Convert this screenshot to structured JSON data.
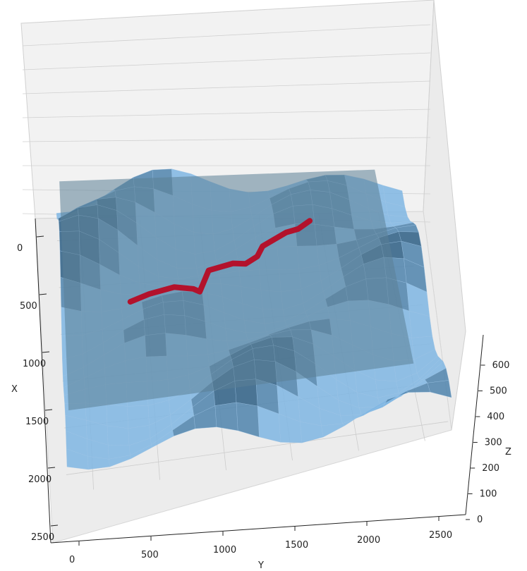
{
  "chart_data": {
    "type": "surface3d",
    "title": "",
    "axes": {
      "x": {
        "label": "X",
        "ticks": [
          "0",
          "500",
          "1000",
          "1500",
          "2000",
          "2500"
        ],
        "range": [
          -200,
          2700
        ]
      },
      "y": {
        "label": "Y",
        "ticks": [
          "0",
          "500",
          "1000",
          "1500",
          "2000",
          "2500"
        ],
        "range": [
          -200,
          2700
        ]
      },
      "z": {
        "label": "Z",
        "ticks": [
          "0",
          "100",
          "200",
          "300",
          "400",
          "500",
          "600"
        ],
        "range": [
          0,
          650
        ]
      }
    },
    "grid": true,
    "series": [
      {
        "kind": "surface",
        "color": "#7fb6e3",
        "values": "terrain height field (approx.)"
      },
      {
        "kind": "plane",
        "color": "#5b7f96",
        "z": 420
      },
      {
        "kind": "path",
        "color": "#b3122c",
        "points": [
          [
            1150,
            350
          ],
          [
            1150,
            500
          ],
          [
            1150,
            700
          ],
          [
            1180,
            850
          ],
          [
            1200,
            900
          ],
          [
            800,
            1000
          ],
          [
            760,
            1200
          ],
          [
            780,
            1300
          ],
          [
            720,
            1400
          ],
          [
            640,
            1450
          ],
          [
            600,
            1550
          ],
          [
            560,
            1650
          ],
          [
            540,
            1750
          ],
          [
            480,
            1850
          ]
        ]
      }
    ]
  }
}
